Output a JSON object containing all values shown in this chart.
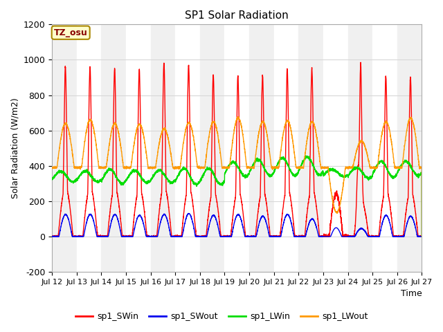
{
  "title": "SP1 Solar Radiation",
  "xlabel": "Time",
  "ylabel": "Solar Radiation (W/m2)",
  "ylim": [
    -200,
    1200
  ],
  "yticks": [
    -200,
    0,
    200,
    400,
    600,
    800,
    1000,
    1200
  ],
  "xtick_labels": [
    "Jul 12",
    "Jul 13",
    "Jul 14",
    "Jul 15",
    "Jul 16",
    "Jul 17",
    "Jul 18",
    "Jul 19",
    "Jul 20",
    "Jul 21",
    "Jul 22",
    "Jul 23",
    "Jul 24",
    "Jul 25",
    "Jul 26",
    "Jul 27"
  ],
  "colors": {
    "SWin": "#ff0000",
    "SWout": "#0000ee",
    "LWin": "#00dd00",
    "LWout": "#ff9900"
  },
  "legend_labels": [
    "sp1_SWin",
    "sp1_SWout",
    "sp1_LWin",
    "sp1_LWout"
  ],
  "tz_label": "TZ_osu",
  "bg_color_light": "#f0f0f0",
  "bg_color_white": "#ffffff",
  "plot_bg": "#ffffff",
  "grid_color": "#d8d8d8",
  "n_days": 15,
  "SWin_peak_values": [
    1010,
    1010,
    1000,
    995,
    1030,
    1020,
    960,
    960,
    960,
    1000,
    1000,
    240,
    950,
    955,
    945
  ],
  "SWout_peak_values": [
    125,
    125,
    125,
    120,
    125,
    130,
    120,
    125,
    115,
    125,
    100,
    50,
    45,
    120,
    115
  ],
  "LWout_peak_values": [
    640,
    660,
    640,
    635,
    610,
    645,
    650,
    670,
    650,
    655,
    650,
    135,
    540,
    650,
    670
  ],
  "LWin_base_values": [
    340,
    340,
    340,
    340,
    340,
    340,
    340,
    380,
    390,
    395,
    400,
    360,
    360,
    380,
    385
  ],
  "LWin_amp_values": [
    30,
    30,
    40,
    35,
    35,
    45,
    45,
    40,
    45,
    50,
    50,
    20,
    30,
    45,
    40
  ]
}
